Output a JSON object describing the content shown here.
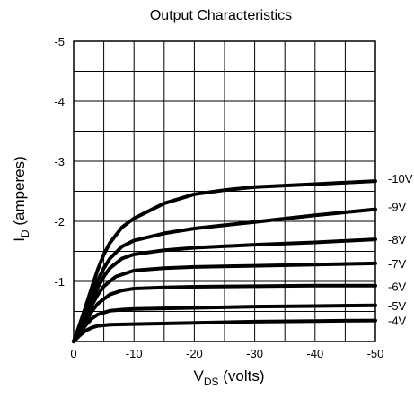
{
  "chart_data": {
    "type": "line",
    "title": "Output Characteristics",
    "ylabel": {
      "main": "I",
      "sub": "D",
      "rest": " (amperes)"
    },
    "xlabel": {
      "main": "V",
      "sub": "DS",
      "rest": " (volts)"
    },
    "xlim": [
      0,
      -50
    ],
    "ylim": [
      0,
      -5
    ],
    "x_ticks": [
      {
        "value": 0,
        "label": "0"
      },
      {
        "value": -10,
        "label": "-10"
      },
      {
        "value": -20,
        "label": "-20"
      },
      {
        "value": -30,
        "label": "-30"
      },
      {
        "value": -40,
        "label": "-40"
      },
      {
        "value": -50,
        "label": "-50"
      }
    ],
    "y_ticks": [
      {
        "value": -1,
        "label": "-1"
      },
      {
        "value": -2,
        "label": "-2"
      },
      {
        "value": -3,
        "label": "-3"
      },
      {
        "value": -4,
        "label": "-4"
      },
      {
        "value": -5,
        "label": "-5"
      }
    ],
    "grid": true,
    "grid_minor": {
      "x_step": -5,
      "y_step": -0.5
    },
    "series": [
      {
        "name": "-4V",
        "points": [
          [
            0,
            0
          ],
          [
            -1,
            -0.1
          ],
          [
            -2,
            -0.18
          ],
          [
            -3,
            -0.23
          ],
          [
            -4,
            -0.26
          ],
          [
            -6,
            -0.28
          ],
          [
            -10,
            -0.29
          ],
          [
            -20,
            -0.31
          ],
          [
            -30,
            -0.33
          ],
          [
            -40,
            -0.34
          ],
          [
            -50,
            -0.35
          ]
        ]
      },
      {
        "name": "-5V",
        "points": [
          [
            0,
            0
          ],
          [
            -1,
            -0.14
          ],
          [
            -2,
            -0.27
          ],
          [
            -3,
            -0.38
          ],
          [
            -4,
            -0.45
          ],
          [
            -6,
            -0.51
          ],
          [
            -8,
            -0.53
          ],
          [
            -10,
            -0.54
          ],
          [
            -20,
            -0.56
          ],
          [
            -30,
            -0.58
          ],
          [
            -40,
            -0.59
          ],
          [
            -50,
            -0.6
          ]
        ]
      },
      {
        "name": "-6V",
        "points": [
          [
            0,
            0
          ],
          [
            -1,
            -0.17
          ],
          [
            -2,
            -0.33
          ],
          [
            -3,
            -0.5
          ],
          [
            -4,
            -0.63
          ],
          [
            -6,
            -0.78
          ],
          [
            -8,
            -0.85
          ],
          [
            -10,
            -0.88
          ],
          [
            -15,
            -0.9
          ],
          [
            -20,
            -0.91
          ],
          [
            -30,
            -0.92
          ],
          [
            -40,
            -0.93
          ],
          [
            -50,
            -0.93
          ]
        ]
      },
      {
        "name": "-7V",
        "points": [
          [
            0,
            0
          ],
          [
            -1,
            -0.2
          ],
          [
            -2,
            -0.4
          ],
          [
            -3,
            -0.6
          ],
          [
            -4,
            -0.78
          ],
          [
            -5,
            -0.92
          ],
          [
            -7,
            -1.08
          ],
          [
            -10,
            -1.18
          ],
          [
            -15,
            -1.22
          ],
          [
            -20,
            -1.24
          ],
          [
            -30,
            -1.26
          ],
          [
            -40,
            -1.28
          ],
          [
            -50,
            -1.3
          ]
        ]
      },
      {
        "name": "-8V",
        "points": [
          [
            0,
            0
          ],
          [
            -1,
            -0.22
          ],
          [
            -2,
            -0.45
          ],
          [
            -3,
            -0.68
          ],
          [
            -4,
            -0.9
          ],
          [
            -5,
            -1.08
          ],
          [
            -6,
            -1.22
          ],
          [
            -8,
            -1.38
          ],
          [
            -10,
            -1.45
          ],
          [
            -15,
            -1.52
          ],
          [
            -20,
            -1.56
          ],
          [
            -30,
            -1.61
          ],
          [
            -40,
            -1.65
          ],
          [
            -50,
            -1.7
          ]
        ]
      },
      {
        "name": "-9V",
        "points": [
          [
            0,
            0
          ],
          [
            -1,
            -0.25
          ],
          [
            -2,
            -0.52
          ],
          [
            -3,
            -0.78
          ],
          [
            -4,
            -1.02
          ],
          [
            -5,
            -1.22
          ],
          [
            -6,
            -1.38
          ],
          [
            -8,
            -1.58
          ],
          [
            -10,
            -1.68
          ],
          [
            -15,
            -1.8
          ],
          [
            -20,
            -1.88
          ],
          [
            -30,
            -1.99
          ],
          [
            -40,
            -2.1
          ],
          [
            -50,
            -2.2
          ]
        ]
      },
      {
        "name": "-10V",
        "points": [
          [
            0,
            0
          ],
          [
            -1,
            -0.28
          ],
          [
            -2,
            -0.58
          ],
          [
            -3,
            -0.9
          ],
          [
            -4,
            -1.2
          ],
          [
            -5,
            -1.45
          ],
          [
            -6,
            -1.64
          ],
          [
            -8,
            -1.9
          ],
          [
            -10,
            -2.05
          ],
          [
            -15,
            -2.3
          ],
          [
            -20,
            -2.45
          ],
          [
            -25,
            -2.52
          ],
          [
            -30,
            -2.57
          ],
          [
            -40,
            -2.62
          ],
          [
            -50,
            -2.67
          ]
        ]
      }
    ]
  }
}
